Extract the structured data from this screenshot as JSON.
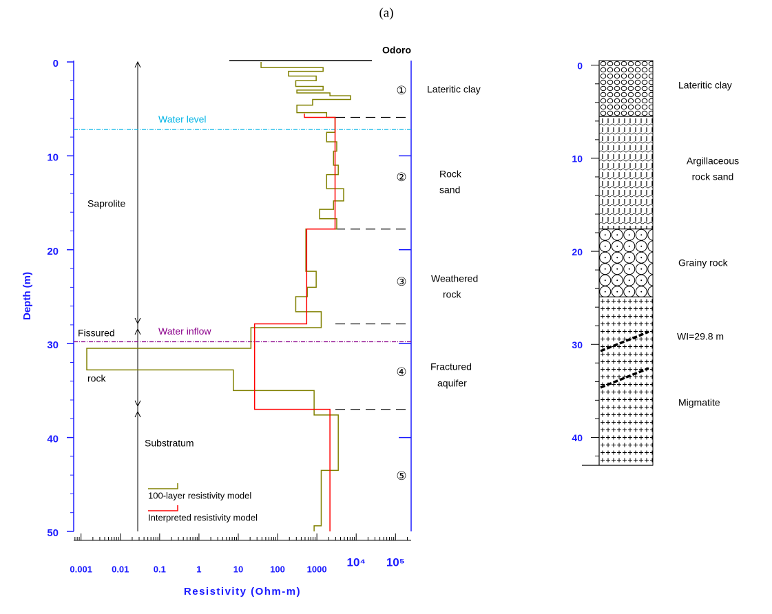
{
  "title": "(a)",
  "chart_data": [
    {
      "type": "step-profile",
      "station": "Odoro",
      "xlabel": "Resistivity (Ohm-m)",
      "ylabel": "Depth (m)",
      "xscale": "log",
      "xlim": [
        0.00065,
        250000
      ],
      "xticks": [
        0.001,
        0.01,
        0.1,
        1,
        10,
        100,
        1000,
        {
          "value": 10000,
          "label": "10⁴"
        },
        {
          "value": 100000,
          "label": "10⁵"
        }
      ],
      "x_minor": true,
      "ylim": [
        0,
        50
      ],
      "yticks": [
        0,
        10,
        20,
        30,
        40,
        50
      ],
      "y_minor_step": 2,
      "series": [
        {
          "name": "100-layer resistivity model",
          "color": "#808000",
          "depth": [
            0,
            0.6,
            0.6,
            1.0,
            1.0,
            1.5,
            1.5,
            2.0,
            2.0,
            2.6,
            2.6,
            3.0,
            3.0,
            3.3,
            3.3,
            3.6,
            3.6,
            4.0,
            4.0,
            4.6,
            4.6,
            5.4,
            5.4,
            5.9,
            5.9,
            7.5,
            7.5,
            8.5,
            8.5,
            9.5,
            9.5,
            11,
            11,
            12,
            12,
            13.5,
            13.5,
            14.8,
            14.8,
            15.7,
            15.7,
            16.7,
            16.7,
            17.8,
            17.8,
            22.3,
            22.3,
            24,
            24,
            25,
            25,
            26.6,
            26.6,
            28.3,
            28.3,
            30.5,
            30.5,
            32.8,
            32.8,
            35,
            35,
            37.6,
            37.6,
            43.5,
            43.5,
            49.4,
            49.4,
            50
          ],
          "resistivity": [
            38,
            38,
            1440,
            1440,
            190,
            190,
            960,
            960,
            290,
            290,
            1440,
            1440,
            310,
            310,
            2150,
            2150,
            7200,
            7200,
            780,
            780,
            310,
            310,
            1770,
            1770,
            2900,
            2900,
            1770,
            1770,
            3200,
            3200,
            2650,
            2650,
            3500,
            3500,
            1770,
            1770,
            4800,
            4800,
            2650,
            2650,
            1170,
            1170,
            3200,
            3200,
            525,
            525,
            960,
            960,
            570,
            570,
            290,
            290,
            1290,
            1290,
            21,
            21,
            0.0014,
            0.0014,
            7.5,
            7.5,
            850,
            850,
            3500,
            3500,
            1290,
            1290,
            850,
            850
          ]
        },
        {
          "name": "Interpreted resistivity model",
          "color": "#ff0000",
          "depth": [
            5.5,
            5.9,
            5.9,
            17.8,
            17.8,
            27.9,
            27.9,
            37,
            37,
            50
          ],
          "resistivity": [
            480,
            480,
            2900,
            2900,
            550,
            550,
            26,
            26,
            2150,
            2150
          ]
        }
      ],
      "water_lines": [
        {
          "label": "Water level",
          "depth": 7.2,
          "color": "#00b4e6"
        },
        {
          "label": "Water inflow",
          "depth": 29.8,
          "color": "#8b008b"
        }
      ],
      "boundaries": [
        5.9,
        17.8,
        27.9,
        37
      ],
      "zones": [
        "①",
        "②",
        "③",
        "④",
        "⑤"
      ],
      "zone_labels": [
        [
          "Lateritic clay"
        ],
        [
          "Rock",
          "sand"
        ],
        [
          "Weathered",
          "rock"
        ],
        [
          "Fractured",
          "aquifer"
        ]
      ],
      "units": {
        "saprolite": "Saprolite",
        "fissured": "Fissured",
        "rock": "rock",
        "substratum": "Substratum"
      }
    },
    {
      "type": "lithology",
      "ylim": [
        -0.5,
        43
      ],
      "yticks": [
        0,
        10,
        20,
        30,
        40
      ],
      "y_minor_step": 2,
      "layers": [
        {
          "label": [
            "Lateritic clay"
          ],
          "top": -0.5,
          "bottom": 5.5
        },
        {
          "label": [
            "Argillaceous",
            "rock sand"
          ],
          "top": 5.5,
          "bottom": 17.6
        },
        {
          "label": [
            "Grainy rock"
          ],
          "top": 17.6,
          "bottom": 24.9
        },
        {
          "label": [
            "Migmatite"
          ],
          "top": 24.9,
          "bottom": 43
        }
      ],
      "annotation": "WI=29.8 m"
    }
  ]
}
